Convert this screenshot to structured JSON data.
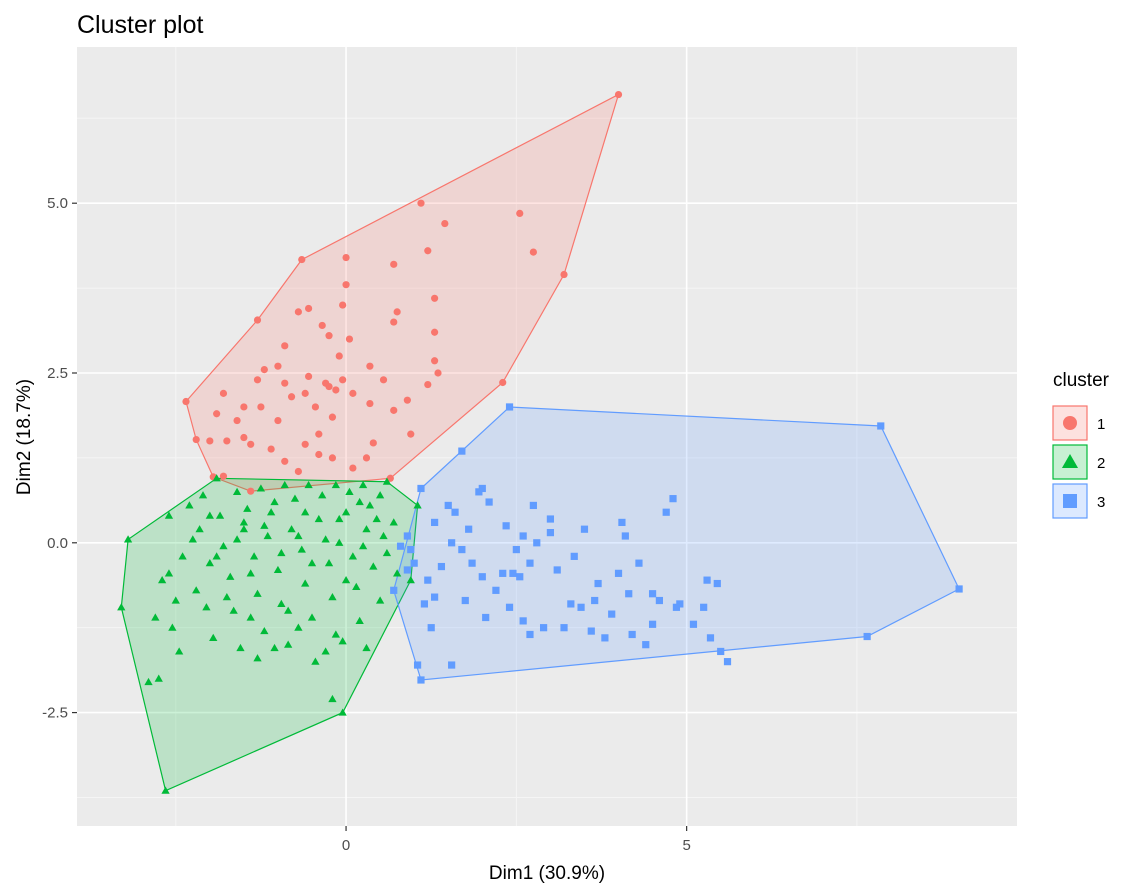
{
  "chart_data": {
    "type": "scatter",
    "title": "Cluster plot",
    "xlabel": "Dim1 (30.9%)",
    "ylabel": "Dim2 (18.7%)",
    "xlim": [
      -3.95,
      9.85
    ],
    "ylim": [
      -4.17,
      7.3
    ],
    "x_ticks": [
      0,
      5
    ],
    "x_tick_labels": [
      "0",
      "5"
    ],
    "y_ticks": [
      -2.5,
      0,
      2.5,
      5
    ],
    "y_tick_labels": [
      "-2.5",
      "0.0",
      "2.5",
      "5.0"
    ],
    "grid": true,
    "legend": {
      "title": "cluster",
      "position": "right"
    },
    "series": [
      {
        "name": "1",
        "shape": "circle",
        "color": "#F8766D",
        "hull": [
          [
            -2.35,
            2.08
          ],
          [
            -2.2,
            1.52
          ],
          [
            -1.95,
            0.97
          ],
          [
            -1.4,
            0.76
          ],
          [
            0.65,
            0.95
          ],
          [
            2.3,
            2.36
          ],
          [
            3.2,
            3.95
          ],
          [
            4.0,
            6.6
          ],
          [
            -0.65,
            4.17
          ],
          [
            -1.3,
            3.28
          ]
        ],
        "points": [
          [
            -2.35,
            2.08
          ],
          [
            -2.2,
            1.52
          ],
          [
            -1.95,
            0.97
          ],
          [
            -1.8,
            0.98
          ],
          [
            -1.4,
            0.76
          ],
          [
            0.65,
            0.95
          ],
          [
            2.3,
            2.36
          ],
          [
            3.2,
            3.95
          ],
          [
            4.0,
            6.6
          ],
          [
            -0.65,
            4.17
          ],
          [
            -1.3,
            3.28
          ],
          [
            1.1,
            5.0
          ],
          [
            1.45,
            4.7
          ],
          [
            2.55,
            4.85
          ],
          [
            2.75,
            4.28
          ],
          [
            1.2,
            4.3
          ],
          [
            0.0,
            4.2
          ],
          [
            0.7,
            4.1
          ],
          [
            0.75,
            3.4
          ],
          [
            0.7,
            3.25
          ],
          [
            1.3,
            3.1
          ],
          [
            1.3,
            2.68
          ],
          [
            1.35,
            2.5
          ],
          [
            1.2,
            2.33
          ],
          [
            0.55,
            2.4
          ],
          [
            0.35,
            2.6
          ],
          [
            0.05,
            3.0
          ],
          [
            0.9,
            2.1
          ],
          [
            0.7,
            1.95
          ],
          [
            0.95,
            1.6
          ],
          [
            0.4,
            1.47
          ],
          [
            0.3,
            1.25
          ],
          [
            0.1,
            1.1
          ],
          [
            -0.2,
            1.25
          ],
          [
            -0.4,
            1.6
          ],
          [
            -0.6,
            1.45
          ],
          [
            -0.9,
            1.2
          ],
          [
            -0.7,
            1.05
          ],
          [
            -1.1,
            1.38
          ],
          [
            -1.4,
            1.45
          ],
          [
            -1.5,
            1.55
          ],
          [
            -1.6,
            1.8
          ],
          [
            -1.8,
            2.2
          ],
          [
            -1.75,
            1.5
          ],
          [
            -1.5,
            2.0
          ],
          [
            -1.3,
            2.4
          ],
          [
            -1.2,
            2.55
          ],
          [
            -1.0,
            2.6
          ],
          [
            -0.9,
            2.35
          ],
          [
            -0.8,
            2.15
          ],
          [
            -0.6,
            2.2
          ],
          [
            -0.55,
            2.45
          ],
          [
            -0.45,
            2.0
          ],
          [
            -0.25,
            2.3
          ],
          [
            -0.15,
            2.25
          ],
          [
            -0.05,
            2.4
          ],
          [
            0.1,
            2.2
          ],
          [
            -0.2,
            1.85
          ],
          [
            -0.9,
            2.9
          ],
          [
            -0.7,
            3.4
          ],
          [
            -0.55,
            3.45
          ],
          [
            -0.35,
            3.2
          ],
          [
            -0.1,
            2.75
          ],
          [
            -0.25,
            3.05
          ],
          [
            -0.05,
            3.5
          ],
          [
            0.0,
            3.8
          ],
          [
            -1.25,
            2.0
          ],
          [
            -1.0,
            1.8
          ],
          [
            -0.4,
            1.3
          ],
          [
            -2.0,
            1.5
          ],
          [
            -1.9,
            1.9
          ],
          [
            1.3,
            3.6
          ],
          [
            0.35,
            2.05
          ],
          [
            -0.3,
            2.35
          ]
        ]
      },
      {
        "name": "2",
        "shape": "triangle",
        "color": "#00BA38",
        "hull": [
          [
            -3.3,
            -0.95
          ],
          [
            -2.65,
            -3.65
          ],
          [
            -0.05,
            -2.5
          ],
          [
            0.95,
            -0.55
          ],
          [
            1.05,
            0.55
          ],
          [
            0.6,
            0.9
          ],
          [
            -1.9,
            0.95
          ],
          [
            -3.2,
            0.05
          ]
        ],
        "points": [
          [
            -3.3,
            -0.95
          ],
          [
            -3.2,
            0.05
          ],
          [
            -2.65,
            -3.65
          ],
          [
            -0.05,
            -2.5
          ],
          [
            -0.2,
            -2.3
          ],
          [
            -2.75,
            -2.0
          ],
          [
            -2.9,
            -2.05
          ],
          [
            -1.9,
            0.95
          ],
          [
            0.6,
            0.9
          ],
          [
            1.05,
            0.55
          ],
          [
            0.95,
            -0.55
          ],
          [
            -2.7,
            -0.55
          ],
          [
            -2.6,
            -0.45
          ],
          [
            -2.5,
            -0.85
          ],
          [
            -2.55,
            -1.25
          ],
          [
            -2.4,
            -0.2
          ],
          [
            -2.25,
            0.05
          ],
          [
            -2.2,
            -0.7
          ],
          [
            -2.05,
            -0.95
          ],
          [
            -2.0,
            -0.3
          ],
          [
            -1.95,
            -1.4
          ],
          [
            -1.8,
            -0.05
          ],
          [
            -1.7,
            -0.5
          ],
          [
            -1.65,
            -1.0
          ],
          [
            -1.55,
            -1.55
          ],
          [
            -1.5,
            0.3
          ],
          [
            -1.45,
            0.5
          ],
          [
            -1.35,
            -0.2
          ],
          [
            -1.3,
            -0.75
          ],
          [
            -1.2,
            -1.3
          ],
          [
            -1.15,
            0.1
          ],
          [
            -1.1,
            0.45
          ],
          [
            -1.0,
            -0.4
          ],
          [
            -0.95,
            -0.9
          ],
          [
            -0.85,
            -1.5
          ],
          [
            -0.8,
            0.2
          ],
          [
            -0.75,
            0.65
          ],
          [
            -0.65,
            -0.1
          ],
          [
            -0.6,
            -0.6
          ],
          [
            -0.5,
            -1.1
          ],
          [
            -0.45,
            -1.75
          ],
          [
            -0.4,
            0.35
          ],
          [
            -0.35,
            0.7
          ],
          [
            -0.25,
            -0.3
          ],
          [
            -0.2,
            -0.8
          ],
          [
            -0.15,
            -1.35
          ],
          [
            -0.1,
            0.0
          ],
          [
            0.0,
            0.45
          ],
          [
            0.05,
            0.75
          ],
          [
            0.1,
            -0.2
          ],
          [
            0.15,
            -0.65
          ],
          [
            0.2,
            -1.15
          ],
          [
            0.3,
            0.2
          ],
          [
            0.35,
            0.55
          ],
          [
            0.4,
            -0.35
          ],
          [
            0.5,
            -0.85
          ],
          [
            0.55,
            0.1
          ],
          [
            0.6,
            -0.15
          ],
          [
            0.7,
            0.3
          ],
          [
            0.75,
            -0.45
          ],
          [
            -2.3,
            0.55
          ],
          [
            -2.1,
            0.7
          ],
          [
            -1.85,
            0.4
          ],
          [
            -1.6,
            0.75
          ],
          [
            -1.25,
            0.8
          ],
          [
            -0.9,
            0.85
          ],
          [
            -0.55,
            0.85
          ],
          [
            -0.15,
            0.85
          ],
          [
            0.25,
            0.85
          ],
          [
            -1.75,
            -0.8
          ],
          [
            -1.4,
            -1.1
          ],
          [
            -1.05,
            -1.55
          ],
          [
            -0.7,
            -1.25
          ],
          [
            -0.3,
            -1.6
          ],
          [
            -0.05,
            -1.45
          ],
          [
            0.3,
            -1.55
          ],
          [
            -2.15,
            0.2
          ],
          [
            -1.9,
            -0.2
          ],
          [
            -1.6,
            0.05
          ],
          [
            -1.4,
            -0.45
          ],
          [
            -1.2,
            0.25
          ],
          [
            -0.95,
            -0.15
          ],
          [
            -0.7,
            0.1
          ],
          [
            -0.5,
            -0.3
          ],
          [
            -0.3,
            0.05
          ],
          [
            0.0,
            -0.55
          ],
          [
            0.25,
            -0.05
          ],
          [
            0.45,
            0.35
          ],
          [
            -2.45,
            -1.6
          ],
          [
            -2.8,
            -1.1
          ],
          [
            -2.6,
            0.4
          ],
          [
            -1.3,
            -1.7
          ],
          [
            -0.85,
            -1.0
          ],
          [
            -0.6,
            0.45
          ],
          [
            -0.1,
            0.35
          ],
          [
            0.2,
            0.6
          ],
          [
            0.5,
            0.7
          ],
          [
            -1.05,
            0.6
          ],
          [
            -1.5,
            0.2
          ],
          [
            -2.0,
            0.4
          ]
        ]
      },
      {
        "name": "3",
        "shape": "square",
        "color": "#619CFF",
        "hull": [
          [
            0.7,
            -0.7
          ],
          [
            1.1,
            -2.02
          ],
          [
            7.65,
            -1.38
          ],
          [
            9.0,
            -0.68
          ],
          [
            7.85,
            1.72
          ],
          [
            2.4,
            2.0
          ],
          [
            1.1,
            0.8
          ]
        ],
        "points": [
          [
            0.7,
            -0.7
          ],
          [
            1.1,
            -2.02
          ],
          [
            7.65,
            -1.38
          ],
          [
            9.0,
            -0.68
          ],
          [
            7.85,
            1.72
          ],
          [
            2.4,
            2.0
          ],
          [
            1.1,
            0.8
          ],
          [
            1.05,
            -1.8
          ],
          [
            1.55,
            -1.8
          ],
          [
            1.7,
            1.35
          ],
          [
            2.0,
            0.8
          ],
          [
            2.1,
            0.6
          ],
          [
            2.35,
            0.25
          ],
          [
            2.5,
            -0.1
          ],
          [
            2.6,
            0.1
          ],
          [
            2.75,
            0.55
          ],
          [
            3.0,
            0.35
          ],
          [
            3.1,
            -0.4
          ],
          [
            3.3,
            -0.9
          ],
          [
            3.5,
            0.2
          ],
          [
            3.7,
            -0.6
          ],
          [
            3.9,
            -1.05
          ],
          [
            4.1,
            0.1
          ],
          [
            4.3,
            -0.3
          ],
          [
            4.5,
            -0.75
          ],
          [
            4.7,
            0.45
          ],
          [
            4.9,
            -0.9
          ],
          [
            5.1,
            -1.2
          ],
          [
            5.3,
            -0.55
          ],
          [
            5.45,
            -0.6
          ],
          [
            5.25,
            -0.95
          ],
          [
            4.4,
            -1.5
          ],
          [
            4.2,
            -1.35
          ],
          [
            3.8,
            -1.4
          ],
          [
            3.6,
            -1.3
          ],
          [
            3.2,
            -1.25
          ],
          [
            2.9,
            -1.25
          ],
          [
            2.6,
            -1.15
          ],
          [
            2.4,
            -0.95
          ],
          [
            2.2,
            -0.7
          ],
          [
            2.0,
            -0.5
          ],
          [
            1.85,
            -0.3
          ],
          [
            1.7,
            -0.1
          ],
          [
            1.55,
            0.0
          ],
          [
            1.4,
            -0.35
          ],
          [
            1.3,
            -0.8
          ],
          [
            1.2,
            -0.55
          ],
          [
            1.0,
            -0.3
          ],
          [
            0.9,
            0.1
          ],
          [
            0.95,
            -0.1
          ],
          [
            1.3,
            0.3
          ],
          [
            1.6,
            0.45
          ],
          [
            1.8,
            0.2
          ],
          [
            2.3,
            -0.45
          ],
          [
            2.45,
            -0.45
          ],
          [
            2.55,
            -0.5
          ],
          [
            2.7,
            -0.3
          ],
          [
            3.35,
            -0.2
          ],
          [
            3.45,
            -0.95
          ],
          [
            3.65,
            -0.85
          ],
          [
            4.0,
            -0.45
          ],
          [
            4.15,
            -0.75
          ],
          [
            4.6,
            -0.85
          ],
          [
            4.85,
            -0.95
          ],
          [
            5.35,
            -1.4
          ],
          [
            5.5,
            -1.6
          ],
          [
            5.6,
            -1.75
          ],
          [
            4.5,
            -1.2
          ],
          [
            2.7,
            -1.35
          ],
          [
            2.05,
            -1.1
          ],
          [
            1.75,
            -0.85
          ],
          [
            1.25,
            -1.25
          ],
          [
            1.15,
            -0.9
          ],
          [
            0.9,
            -0.4
          ],
          [
            0.8,
            -0.05
          ],
          [
            2.8,
            0.0
          ],
          [
            3.0,
            0.15
          ],
          [
            4.05,
            0.3
          ],
          [
            4.8,
            0.65
          ],
          [
            1.95,
            0.75
          ],
          [
            1.5,
            0.55
          ]
        ]
      }
    ]
  }
}
